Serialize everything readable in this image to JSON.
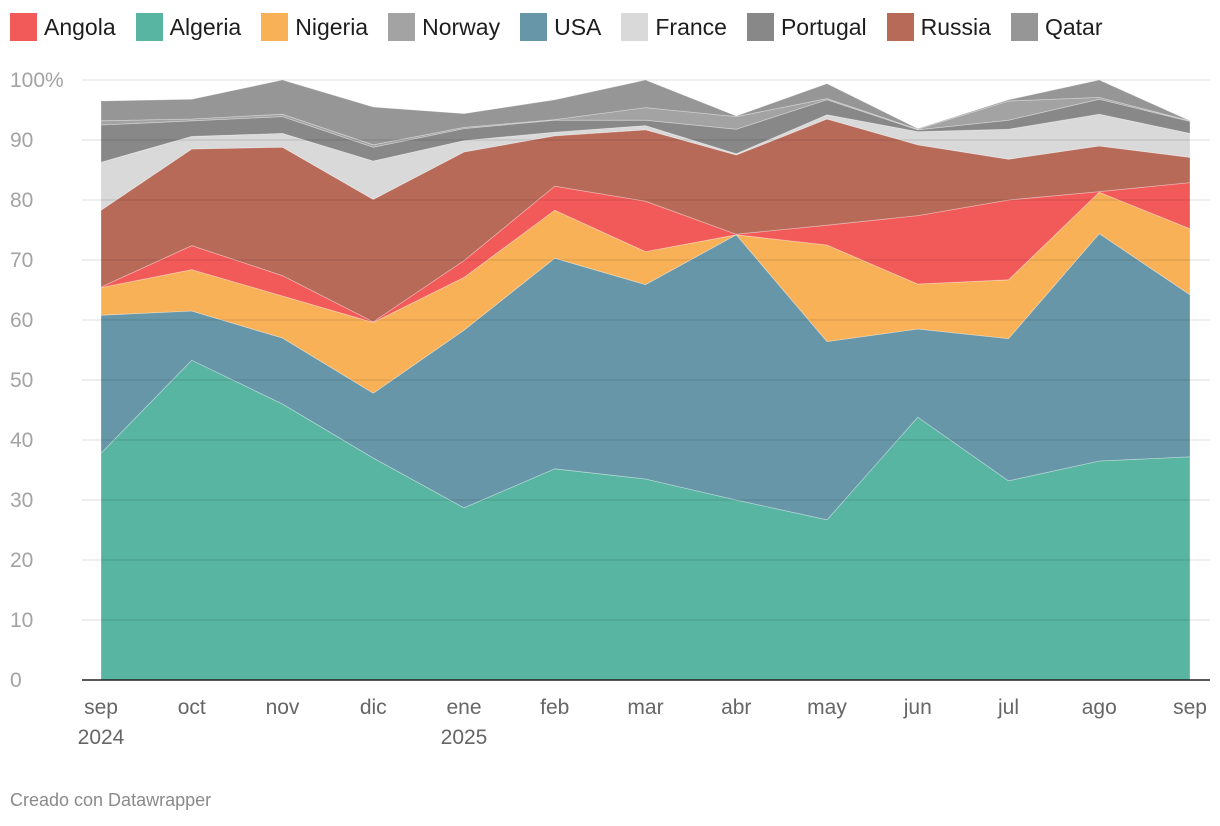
{
  "chart_data": {
    "type": "area",
    "stacked": true,
    "categories": [
      "sep 2024",
      "oct",
      "nov",
      "dic",
      "ene 2025",
      "feb",
      "mar",
      "abr",
      "may",
      "jun",
      "jul",
      "ago",
      "sep"
    ],
    "x_tick_labels": [
      [
        "sep",
        "2024"
      ],
      [
        "oct"
      ],
      [
        "nov"
      ],
      [
        "dic"
      ],
      [
        "ene",
        "2025"
      ],
      [
        "feb"
      ],
      [
        "mar"
      ],
      [
        "abr"
      ],
      [
        "may"
      ],
      [
        "jun"
      ],
      [
        "jul"
      ],
      [
        "ago"
      ],
      [
        "sep"
      ]
    ],
    "y_ticks": [
      0,
      10,
      20,
      30,
      40,
      50,
      60,
      70,
      80,
      90,
      100
    ],
    "y_tick_labels": [
      "0",
      "10",
      "20",
      "30",
      "40",
      "50",
      "60",
      "70",
      "80",
      "90",
      "100%"
    ],
    "ylim": [
      0,
      100
    ],
    "grid": true,
    "legend_position": "top",
    "legend_order": [
      "Angola",
      "Algeria",
      "Nigeria",
      "Norway",
      "USA",
      "France",
      "Portugal",
      "Russia",
      "Qatar"
    ],
    "series": [
      {
        "name": "Algeria",
        "color": "#58b5a2",
        "values": [
          37.8,
          53.3,
          46.0,
          37.0,
          28.7,
          35.2,
          33.5,
          30.0,
          26.7,
          43.8,
          33.2,
          36.5,
          37.2
        ]
      },
      {
        "name": "USA",
        "color": "#6696a8",
        "values": [
          23.0,
          8.2,
          11.0,
          10.8,
          29.6,
          35.1,
          32.4,
          44.2,
          29.7,
          14.7,
          23.7,
          37.9,
          27.0
        ]
      },
      {
        "name": "Nigeria",
        "color": "#f9b157",
        "values": [
          4.6,
          6.9,
          7.0,
          11.8,
          8.8,
          8.0,
          5.5,
          0.0,
          16.1,
          7.5,
          9.8,
          6.9,
          11.0
        ]
      },
      {
        "name": "Angola",
        "color": "#f25a5a",
        "values": [
          0.1,
          4.0,
          3.4,
          0.1,
          2.8,
          4.0,
          8.4,
          0.1,
          3.3,
          11.4,
          13.3,
          0.1,
          7.7
        ]
      },
      {
        "name": "Russia",
        "color": "#b86a58",
        "values": [
          12.8,
          16.1,
          21.4,
          20.4,
          18.1,
          8.4,
          11.9,
          13.2,
          17.7,
          11.8,
          6.8,
          7.6,
          4.2
        ]
      },
      {
        "name": "France",
        "color": "#d9d9d9",
        "values": [
          8.0,
          2.1,
          2.3,
          6.4,
          1.9,
          0.6,
          0.7,
          0.2,
          0.7,
          2.2,
          5.0,
          5.3,
          4.0
        ]
      },
      {
        "name": "Portugal",
        "color": "#888888",
        "values": [
          6.2,
          2.6,
          2.8,
          2.3,
          2.0,
          2.0,
          0.9,
          4.1,
          2.5,
          0.3,
          1.5,
          2.5,
          2.0
        ]
      },
      {
        "name": "Norway",
        "color": "#a3a3a3",
        "values": [
          0.7,
          0.3,
          0.4,
          0.4,
          0.2,
          0.1,
          2.1,
          2.1,
          0.2,
          0.1,
          3.2,
          0.3,
          0.1
        ]
      },
      {
        "name": "Qatar",
        "color": "#969696",
        "values": [
          3.3,
          3.3,
          5.7,
          6.3,
          2.3,
          3.3,
          4.6,
          0.1,
          2.5,
          0.1,
          0.2,
          2.9,
          0.0
        ]
      }
    ]
  },
  "footer": "Creado con Datawrapper"
}
